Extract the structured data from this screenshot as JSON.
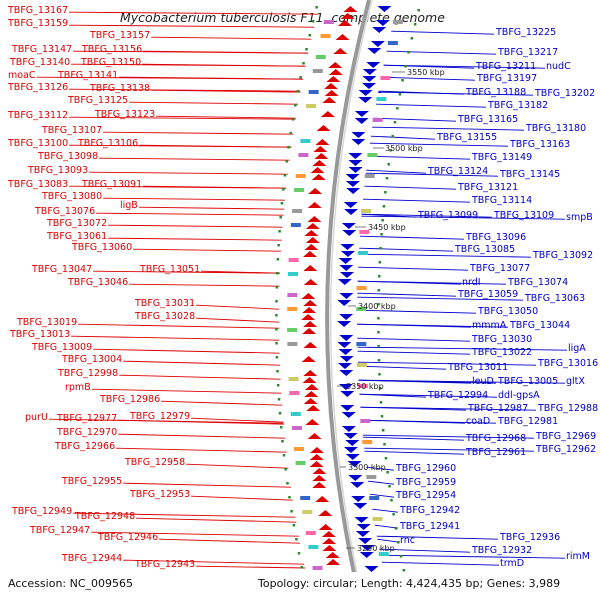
{
  "title": "Mycobacterium tuberculosis F11, complete genome",
  "footer": {
    "accession": "Accession: NC_009565",
    "topology": "Topology: circular; Length: 4,424,435 bp; Genes: 3,989"
  },
  "colors": {
    "forward": "#dd0000",
    "reverse": "#0000cc",
    "backbone": "#999999",
    "tick": "#2a8a2a"
  },
  "ticks": [
    "3550 kbp",
    "3500 kbp",
    "3450 kbp",
    "3400 kbp",
    "3350 kbp",
    "3300 kbp",
    "3250 kbp"
  ],
  "left_labels": [
    "TBFG_13167",
    "TBFG_13159",
    "TBFG_13157",
    "TBFG_13147",
    "TBFG_13156",
    "TBFG_13140",
    "TBFG_13150",
    "moaC",
    "TBFG_13141",
    "TBFG_13126",
    "TBFG_13138",
    "TBFG_13125",
    "TBFG_13112",
    "TBFG_13123",
    "TBFG_13107",
    "TBFG_13100",
    "TBFG_13106",
    "TBFG_13098",
    "TBFG_13093",
    "TBFG_13083",
    "TBFG_13091",
    "TBFG_13080",
    "ligB",
    "TBFG_13076",
    "TBFG_13072",
    "TBFG_13061",
    "TBFG_13060",
    "TBFG_13047",
    "TBFG_13051",
    "TBFG_13046",
    "TBFG_13031",
    "TBFG_13028",
    "TBFG_13019",
    "TBFG_13013",
    "TBFG_13009",
    "TBFG_13004",
    "TBFG_12998",
    "rpmB",
    "TBFG_12986",
    "purU",
    "TBFG_12977",
    "TBFG_12979",
    "TBFG_12970",
    "TBFG_12966",
    "TBFG_12958",
    "TBFG_12955",
    "TBFG_12953",
    "TBFG_12949",
    "TBFG_12948",
    "TBFG_12947",
    "TBFG_12946",
    "TBFG_12944",
    "TBFG_12943"
  ],
  "right_labels": [
    "TBFG_13225",
    "TBFG_13217",
    "TBFG_13211",
    "nudC",
    "TBFG_13197",
    "TBFG_13188",
    "TBFG_13202",
    "TBFG_13182",
    "TBFG_13165",
    "TBFG_13180",
    "TBFG_13155",
    "TBFG_13163",
    "TBFG_13149",
    "TBFG_13124",
    "TBFG_13145",
    "TBFG_13121",
    "TBFG_13114",
    "TBFG_13099",
    "TBFG_13109",
    "smpB",
    "TBFG_13096",
    "TBFG_13085",
    "TBFG_13092",
    "TBFG_13077",
    "nrdI",
    "TBFG_13074",
    "TBFG_13059",
    "TBFG_13063",
    "TBFG_13050",
    "mmmA",
    "TBFG_13044",
    "TBFG_13030",
    "TBFG_13022",
    "ligA",
    "TBFG_13011",
    "TBFG_13016",
    "leuD",
    "TBFG_13005",
    "gltX",
    "TBFG_12994",
    "ddl-gpsA",
    "TBFG_12987",
    "TBFG_12988",
    "coaD",
    "TBFG_12981",
    "TBFG_12968",
    "TBFG_12969",
    "TBFG_12961",
    "TBFG_12962",
    "TBFG_12960",
    "TBFG_12959",
    "TBFG_12954",
    "TBFG_12942",
    "TBFG_12941",
    "rnc",
    "TBFG_12936",
    "TBFG_12932",
    "rimM",
    "trmD"
  ]
}
